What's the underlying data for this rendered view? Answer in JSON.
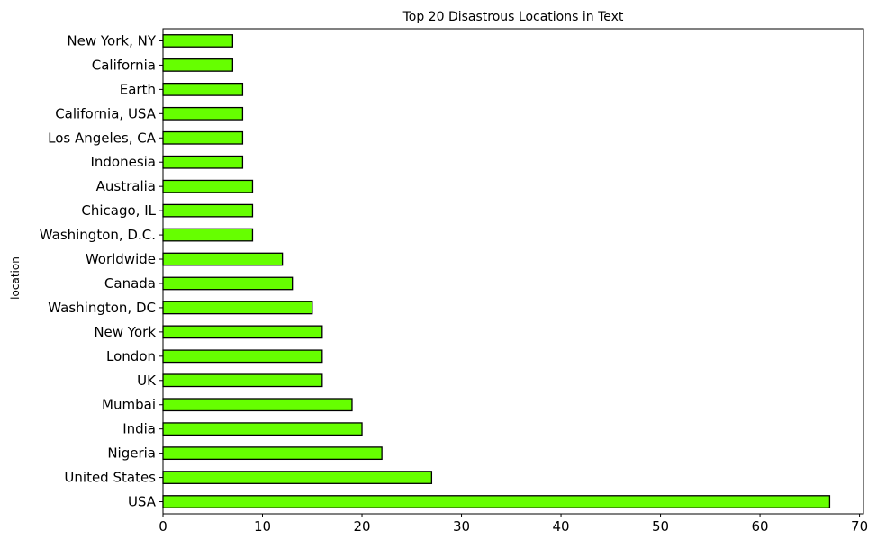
{
  "chart_data": {
    "type": "bar",
    "orientation": "horizontal",
    "title": "Top 20 Disastrous Locations in Text",
    "xlabel": "",
    "ylabel": "location",
    "categories": [
      "USA",
      "United States",
      "Nigeria",
      "India",
      "Mumbai",
      "UK",
      "London",
      "New York",
      "Washington, DC",
      "Canada",
      "Worldwide",
      "Washington, D.C.",
      "Chicago, IL",
      "Australia",
      "Indonesia",
      "Los Angeles, CA",
      "California, USA",
      "Earth",
      "California",
      "New York, NY"
    ],
    "values": [
      67,
      27,
      22,
      20,
      19,
      16,
      16,
      16,
      15,
      13,
      12,
      9,
      9,
      9,
      8,
      8,
      8,
      8,
      7,
      7
    ],
    "xlim": [
      0,
      70.4
    ],
    "xticks": [
      0,
      10,
      20,
      30,
      40,
      50,
      60,
      70
    ],
    "grid": false,
    "bar_color": "#66ff00",
    "edge_color": "#000000"
  }
}
